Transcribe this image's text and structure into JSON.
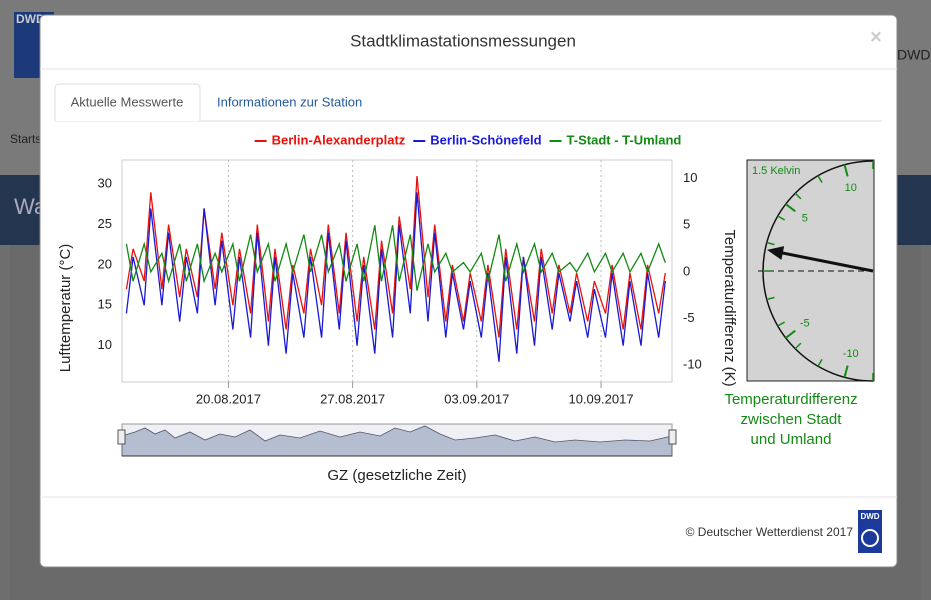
{
  "background": {
    "logo": "DWD",
    "breadcrumb": "Starts",
    "heading": "Wa"
  },
  "modal": {
    "title": "Stadtklimastationsmessungen",
    "close": "×",
    "tabs": [
      "Aktuelle Messwerte",
      "Informationen zur Station"
    ],
    "footer": "© Deutscher Wetterdienst 2017",
    "footer_logo": "DWD"
  },
  "chart_data": {
    "type": "line",
    "x": [
      "14.08.2017",
      "14.08.2017",
      "15.08.2017",
      "15.08.2017",
      "16.08.2017",
      "16.08.2017",
      "17.08.2017",
      "17.08.2017",
      "18.08.2017",
      "18.08.2017",
      "19.08.2017",
      "19.08.2017",
      "20.08.2017",
      "20.08.2017",
      "21.08.2017",
      "21.08.2017",
      "22.08.2017",
      "22.08.2017",
      "23.08.2017",
      "23.08.2017",
      "24.08.2017",
      "24.08.2017",
      "25.08.2017",
      "25.08.2017",
      "26.08.2017",
      "26.08.2017",
      "27.08.2017",
      "27.08.2017",
      "28.08.2017",
      "28.08.2017",
      "29.08.2017",
      "29.08.2017",
      "30.08.2017",
      "30.08.2017",
      "31.08.2017",
      "31.08.2017",
      "01.09.2017",
      "01.09.2017",
      "02.09.2017",
      "02.09.2017",
      "03.09.2017",
      "03.09.2017",
      "04.09.2017",
      "04.09.2017",
      "05.09.2017",
      "05.09.2017",
      "06.09.2017",
      "06.09.2017",
      "07.09.2017",
      "07.09.2017",
      "08.09.2017",
      "08.09.2017",
      "09.09.2017",
      "09.09.2017",
      "10.09.2017",
      "10.09.2017",
      "11.09.2017",
      "11.09.2017",
      "12.09.2017",
      "12.09.2017",
      "13.09.2017",
      "13.09.2017"
    ],
    "series": [
      {
        "name": "Berlin-Alexanderplatz",
        "color": "#e8120c",
        "axis": "y",
        "values": [
          17,
          22,
          18,
          29,
          17,
          25,
          16,
          22,
          16,
          27,
          17,
          24,
          15,
          22,
          14,
          25,
          13,
          22,
          12,
          20,
          14,
          22,
          15,
          25,
          14,
          24,
          13,
          21,
          12,
          23,
          14,
          26,
          17,
          31,
          16,
          25,
          13,
          20,
          13,
          19,
          13,
          20,
          11,
          22,
          12,
          21,
          13,
          22,
          14,
          20,
          14,
          19,
          13,
          18,
          14,
          20,
          12,
          19,
          12,
          20,
          14,
          19
        ]
      },
      {
        "name": "Berlin-Schönefeld",
        "color": "#1a1ad6",
        "axis": "y",
        "values": [
          14,
          21,
          15,
          27,
          15,
          24,
          13,
          21,
          14,
          27,
          15,
          23,
          12,
          21,
          11,
          24,
          10,
          21,
          9,
          19,
          11,
          21,
          11,
          24,
          12,
          23,
          10,
          20,
          9,
          22,
          11,
          25,
          14,
          29,
          13,
          24,
          11,
          19,
          12,
          18,
          11,
          19,
          8,
          21,
          9,
          21,
          10,
          21,
          12,
          19,
          13,
          18,
          11,
          17,
          11,
          19,
          10,
          18,
          10,
          19,
          11,
          18
        ]
      },
      {
        "name": "T-Stadt - T-Umland",
        "color": "#138a13",
        "axis": "y2",
        "values": [
          3,
          -1,
          3,
          0,
          2,
          -1,
          3,
          -1,
          3,
          -1,
          2,
          0,
          3,
          -1,
          4,
          0,
          3,
          -1,
          3,
          0,
          4,
          0,
          4,
          0,
          3,
          -1,
          3,
          -1,
          5,
          -1,
          5,
          -1,
          4,
          -2,
          3,
          0,
          2,
          0,
          1,
          0,
          2,
          -1,
          4,
          -1,
          3,
          0,
          3,
          0,
          2,
          0,
          1,
          0,
          2,
          0,
          2,
          0,
          2,
          0,
          2,
          0,
          3,
          1
        ]
      }
    ],
    "xlim": [
      "14.08.2017",
      "14.09.2017"
    ],
    "xticks": [
      "20.08.2017",
      "27.08.2017",
      "03.09.2017",
      "10.09.2017"
    ],
    "ylim": [
      5.5,
      33
    ],
    "yticks": [
      10,
      15,
      20,
      25,
      30
    ],
    "y2lim": [
      -11.8,
      12
    ],
    "y2ticks": [
      -10,
      -5,
      0,
      5,
      10
    ],
    "ylabel": "Lufttemperatur (°C)",
    "y2label": "Temperaturdifferenz (K)",
    "xlabel": "GZ (gesetzliche Zeit)",
    "grid": true
  },
  "gauge": {
    "value": 1.5,
    "value_label": "1.5 Kelvin",
    "lim": [
      -12,
      12
    ],
    "ticks": [
      10,
      5,
      -5,
      -10
    ],
    "caption": [
      "Temperaturdifferenz",
      "zwischen Stadt",
      "und Umland"
    ],
    "color": "#138a13"
  }
}
